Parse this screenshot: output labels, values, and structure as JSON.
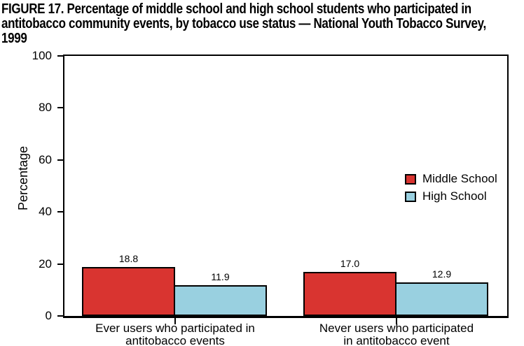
{
  "title": {
    "lines": [
      "FIGURE 17. Percentage of middle school and high school students who participated in",
      "antitobacco community events, by tobacco use status — National Youth Tobacco Survey,",
      "1999"
    ]
  },
  "chart_data": {
    "type": "bar",
    "title": "FIGURE 17. Percentage of middle school and high school students who participated in antitobacco community events, by tobacco use status — National Youth Tobacco Survey, 1999",
    "xlabel": "",
    "ylabel": "Percentage",
    "ylim": [
      0,
      100
    ],
    "y_ticks": [
      0,
      20,
      40,
      60,
      80,
      100
    ],
    "grid": false,
    "legend_position": "inside-right",
    "categories": [
      "Ever users who participated in antitobacco events",
      "Never users who participated in antitobacco event"
    ],
    "category_lines": [
      [
        "Ever users who participated in",
        "antitobacco events"
      ],
      [
        "Never users who participated",
        "in antitobacco event"
      ]
    ],
    "series": [
      {
        "name": "Middle School",
        "color": "#d93430",
        "values": [
          18.8,
          17.0
        ]
      },
      {
        "name": "High School",
        "color": "#99d0e0",
        "values": [
          11.9,
          12.9
        ]
      }
    ]
  },
  "colors": {
    "axis": "#000000",
    "background": "#ffffff",
    "bar_border": "#000000"
  }
}
